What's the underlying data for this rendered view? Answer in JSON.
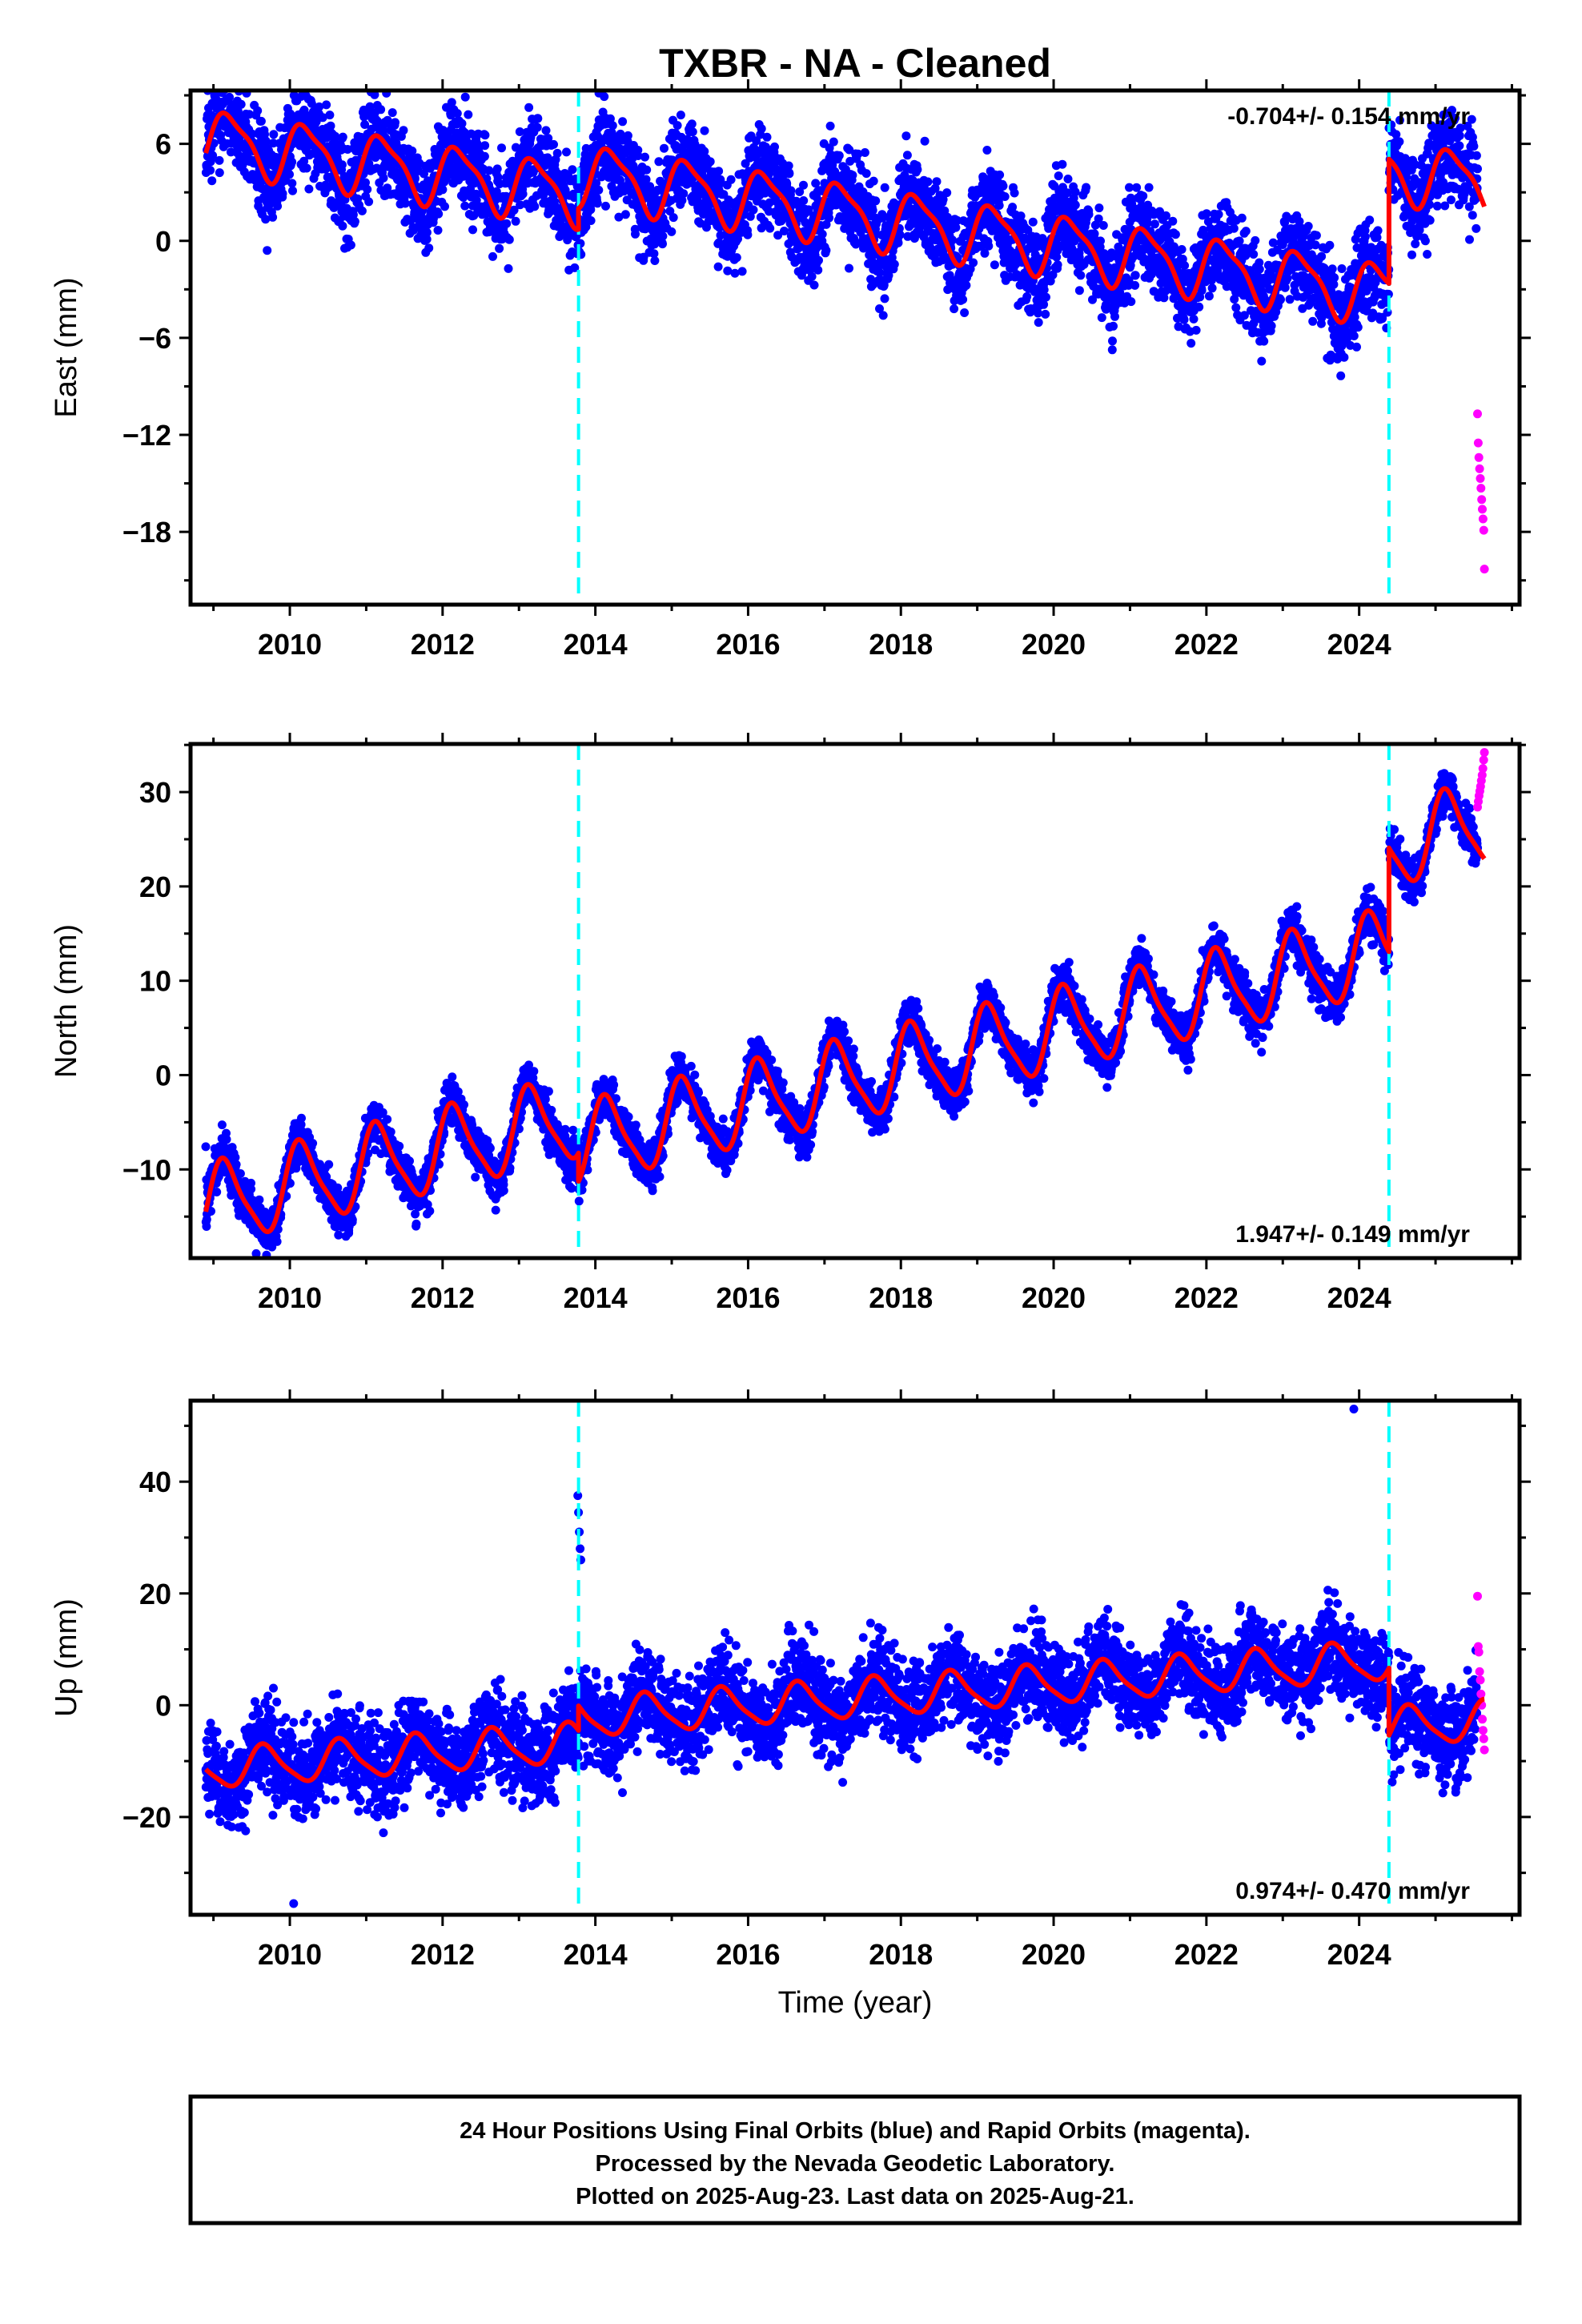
{
  "title": "TXBR  - NA - Cleaned",
  "xlabel": "Time (year)",
  "colors": {
    "final_orbits": "#0000ff",
    "rapid_orbits": "#ff00ff",
    "model": "#ff0000",
    "event_line": "#00ffff"
  },
  "footer": {
    "line1": "24 Hour Positions Using Final Orbits (blue) and Rapid Orbits (magenta).",
    "line2": "Processed by the Nevada Geodetic Laboratory.",
    "line3": "Plotted on 2025-Aug-23. Last data on 2025-Aug-21."
  },
  "chart_data": [
    {
      "type": "scatter",
      "component": "East",
      "ylabel": "East (mm)",
      "rate_label": "-0.704+/- 0.154 mm/yr",
      "rate_position": "top-right",
      "xlim": [
        2008.7,
        2026.1
      ],
      "ylim": [
        -22.5,
        9.3
      ],
      "xticks": [
        2010,
        2012,
        2014,
        2016,
        2018,
        2020,
        2022,
        2024
      ],
      "yticks": [
        6,
        0,
        -6,
        -12,
        -18
      ],
      "event_lines": [
        2013.78,
        2024.39
      ],
      "model": {
        "segments": [
          {
            "start": 2008.9,
            "end": 2013.78,
            "offset": 0.6,
            "trend": -0.704,
            "t0": 2017,
            "amp_annual": 1.8,
            "phase_annual": 0.2,
            "amp_semi": 0.5,
            "phase_semi": 1.0
          },
          {
            "start": 2013.78,
            "end": 2024.39,
            "offset": 1.9,
            "trend": -0.704,
            "t0": 2017,
            "amp_annual": 1.8,
            "phase_annual": 0.2,
            "amp_semi": 0.5,
            "phase_semi": 1.0
          },
          {
            "start": 2024.39,
            "end": 2025.64,
            "offset": 9.6,
            "trend": -0.704,
            "t0": 2017,
            "amp_annual": 1.8,
            "phase_annual": 0.2,
            "amp_semi": 0.5,
            "phase_semi": 1.0
          }
        ]
      },
      "scatter_sd": 1.4,
      "final_range": [
        2008.9,
        2025.55
      ],
      "rapid_range": [
        2025.55,
        2025.64
      ],
      "rapid_points": [
        -10.7,
        -12.5,
        -13.4,
        -14.1,
        -14.7,
        -15.3,
        -16.0,
        -16.6,
        -17.2,
        -17.9,
        -20.3
      ]
    },
    {
      "type": "scatter",
      "component": "North",
      "ylabel": "North (mm)",
      "rate_label": "1.947+/- 0.149 mm/yr",
      "rate_position": "bottom-right",
      "xlim": [
        2008.7,
        2026.1
      ],
      "ylim": [
        -19.4,
        35.1
      ],
      "xticks": [
        2010,
        2012,
        2014,
        2016,
        2018,
        2020,
        2022,
        2024
      ],
      "yticks": [
        30,
        20,
        10,
        0,
        -10
      ],
      "event_lines": [
        2013.78,
        2024.39
      ],
      "model": {
        "segments": [
          {
            "start": 2008.9,
            "end": 2013.78,
            "offset": 1.8,
            "trend": 1.947,
            "t0": 2017,
            "amp_annual": 4.2,
            "phase_annual": 0.6,
            "amp_semi": 0.9,
            "phase_semi": 0.8
          },
          {
            "start": 2013.78,
            "end": 2024.39,
            "offset": -1.2,
            "trend": 1.947,
            "t0": 2017,
            "amp_annual": 4.2,
            "phase_annual": 0.6,
            "amp_semi": 0.9,
            "phase_semi": 0.8
          },
          {
            "start": 2024.39,
            "end": 2025.64,
            "offset": 9.8,
            "trend": 1.947,
            "t0": 2017,
            "amp_annual": 4.2,
            "phase_annual": 0.6,
            "amp_semi": 0.9,
            "phase_semi": 0.8
          }
        ]
      },
      "scatter_sd": 1.2,
      "final_range": [
        2008.9,
        2025.55
      ],
      "rapid_range": [
        2025.55,
        2025.64
      ],
      "rapid_points": [
        28.4,
        29.0,
        29.6,
        30.1,
        30.6,
        31.2,
        31.8,
        32.5,
        33.4,
        34.2
      ]
    },
    {
      "type": "scatter",
      "component": "Up",
      "ylabel": "Up (mm)",
      "rate_label": "0.974+/- 0.470 mm/yr",
      "rate_position": "bottom-right",
      "xlim": [
        2008.7,
        2026.1
      ],
      "ylim": [
        -37.5,
        54.5
      ],
      "xticks": [
        2010,
        2012,
        2014,
        2016,
        2018,
        2020,
        2022,
        2024
      ],
      "yticks": [
        40,
        20,
        0,
        -20
      ],
      "event_lines": [
        2013.78,
        2024.39
      ],
      "model": {
        "segments": [
          {
            "start": 2008.9,
            "end": 2013.78,
            "offset": -3.6,
            "trend": 0.974,
            "t0": 2017,
            "amp_annual": 3.4,
            "phase_annual": 3.6,
            "amp_semi": 0.7,
            "phase_semi": 0.4
          },
          {
            "start": 2013.78,
            "end": 2024.39,
            "offset": 0.8,
            "trend": 0.974,
            "t0": 2017,
            "amp_annual": 3.4,
            "phase_annual": 3.6,
            "amp_semi": 0.7,
            "phase_semi": 0.4
          },
          {
            "start": 2024.39,
            "end": 2025.64,
            "offset": -11.2,
            "trend": 0.974,
            "t0": 2017,
            "amp_annual": 3.4,
            "phase_annual": 3.6,
            "amp_semi": 0.7,
            "phase_semi": 0.4
          }
        ]
      },
      "scatter_sd": 4.0,
      "final_range": [
        2008.9,
        2025.55
      ],
      "rapid_range": [
        2025.55,
        2025.64
      ],
      "rapid_points": [
        19.5,
        10.5,
        9.5,
        6.0,
        4.5,
        2.0,
        0.0,
        -2.5,
        -4.5,
        -6.0,
        -8.0
      ],
      "outliers": [
        [
          2013.77,
          37.5
        ],
        [
          2013.78,
          34.5
        ],
        [
          2013.79,
          31.0
        ],
        [
          2013.8,
          28.0
        ],
        [
          2013.81,
          26.0
        ],
        [
          2023.93,
          53.0
        ],
        [
          2010.05,
          -35.5
        ]
      ]
    }
  ]
}
